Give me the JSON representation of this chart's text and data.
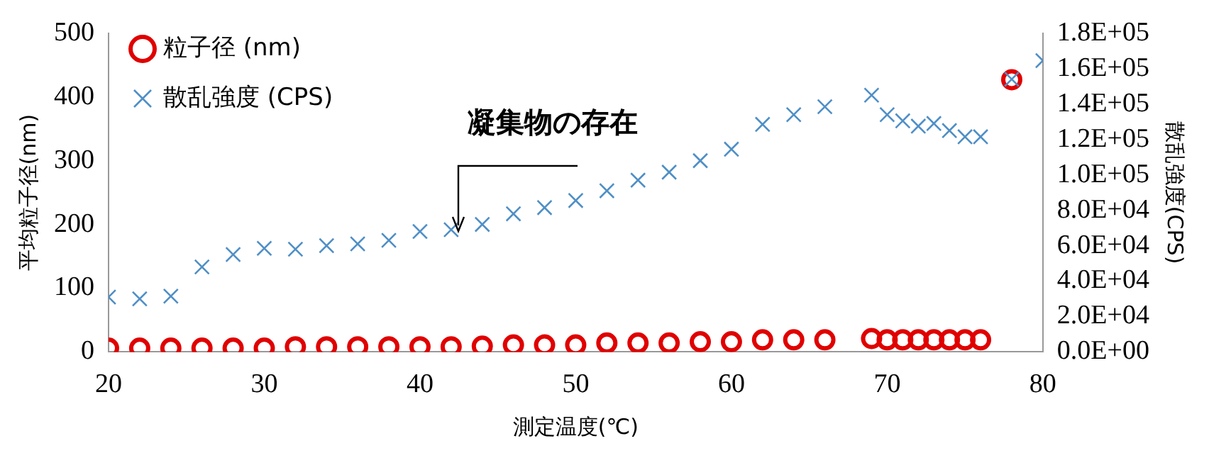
{
  "chart_data": {
    "type": "scatter",
    "xlabel": "測定温度(℃)",
    "ylabel": "平均粒子径(nm)",
    "y2label": "散乱強度(CPS)",
    "annotations": [
      {
        "text": "凝集物の存在",
        "x": 42.5,
        "y": 190
      }
    ],
    "xlim": [
      20,
      80
    ],
    "xticks": [
      20,
      30,
      40,
      50,
      60,
      70,
      80
    ],
    "ylim": [
      0,
      500
    ],
    "yticks": [
      0,
      100,
      200,
      300,
      400,
      500
    ],
    "y2lim": [
      0,
      180000
    ],
    "y2ticks": [
      {
        "value": 0,
        "label": "0.0E+00"
      },
      {
        "value": 20000,
        "label": "2.0E+04"
      },
      {
        "value": 40000,
        "label": "4.0E+04"
      },
      {
        "value": 60000,
        "label": "6.0E+04"
      },
      {
        "value": 80000,
        "label": "8.0E+04"
      },
      {
        "value": 100000,
        "label": "1.0E+05"
      },
      {
        "value": 120000,
        "label": "1.2E+05"
      },
      {
        "value": 140000,
        "label": "1.4E+05"
      },
      {
        "value": 160000,
        "label": "1.6E+05"
      },
      {
        "value": 180000,
        "label": "1.8E+05"
      }
    ],
    "grid": false,
    "legend": "top left",
    "series": [
      {
        "name": "粒子径 (nm)",
        "color": "#e00000",
        "marker": "circle",
        "x": [
          20,
          22,
          24,
          26,
          28,
          30,
          32,
          34,
          36,
          38,
          40,
          42,
          44,
          46,
          48,
          50,
          52,
          54,
          56,
          58,
          60,
          62,
          64,
          66,
          69,
          70,
          71,
          72,
          73,
          74,
          75,
          76,
          78
        ],
        "values": [
          6,
          6,
          6,
          6,
          6,
          6,
          8,
          8,
          8,
          8,
          8,
          8,
          9,
          11,
          11,
          11,
          14,
          14,
          14,
          16,
          16,
          19,
          19,
          19,
          21,
          19,
          19,
          19,
          19,
          19,
          19,
          19,
          427
        ]
      },
      {
        "name": "散乱強度 (CPS)",
        "color": "#4f8fc6",
        "marker": "cross",
        "axis": "y2",
        "x": [
          20,
          22,
          24,
          26,
          28,
          30,
          32,
          34,
          36,
          38,
          40,
          42,
          44,
          46,
          48,
          50,
          52,
          54,
          56,
          58,
          60,
          62,
          64,
          66,
          69,
          70,
          71,
          72,
          73,
          74,
          75,
          76,
          78,
          80
        ],
        "values": [
          31000,
          30000,
          31500,
          48000,
          55000,
          58500,
          58000,
          60000,
          61000,
          63000,
          68000,
          69000,
          72000,
          78000,
          81500,
          85500,
          91000,
          97000,
          101500,
          108000,
          114500,
          128500,
          134000,
          138500,
          145000,
          134000,
          130500,
          127500,
          129000,
          125000,
          121500,
          121500,
          154000,
          164500
        ]
      }
    ]
  }
}
